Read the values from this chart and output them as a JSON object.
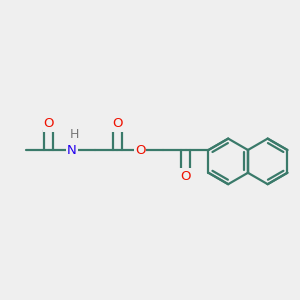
{
  "bg_color": "#efefef",
  "bond_color": "#3a7a6a",
  "bond_width": 1.6,
  "atom_colors": {
    "O": "#ee1100",
    "N": "#2200ee",
    "H": "#777777"
  },
  "font_size_atom": 9.5,
  "fig_width": 3.0,
  "fig_height": 3.0,
  "xlim": [
    0,
    12
  ],
  "ylim": [
    0,
    12
  ]
}
